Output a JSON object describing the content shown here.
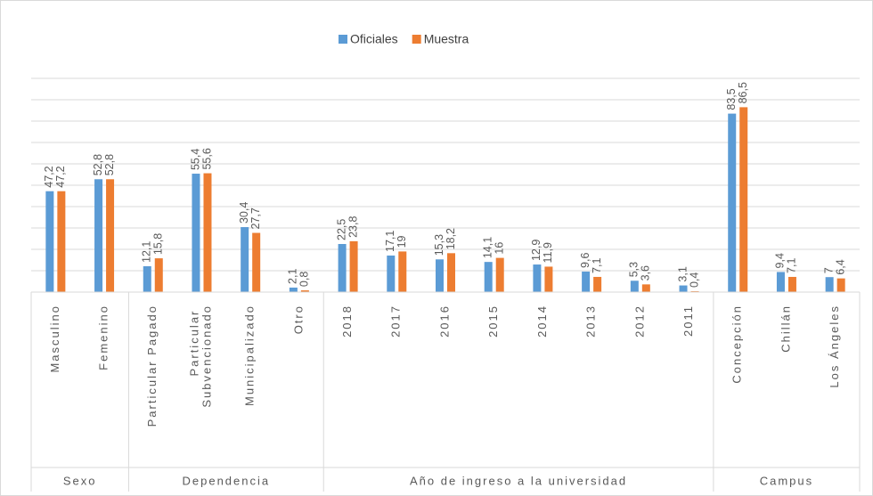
{
  "chart_data": {
    "type": "bar",
    "groups": [
      {
        "label": "Sexo",
        "categories": [
          "Masculino",
          "Femenino"
        ]
      },
      {
        "label": "Dependencia",
        "categories": [
          "Particular Pagado",
          "Particular Subvencionado",
          "Municipalizado",
          "Otro"
        ]
      },
      {
        "label": "Año de ingreso a la universidad",
        "categories": [
          "2018",
          "2017",
          "2016",
          "2015",
          "2014",
          "2013",
          "2012",
          "2011"
        ]
      },
      {
        "label": "Campus",
        "categories": [
          "Concepción",
          "Chillán",
          "Los Ángeles"
        ]
      }
    ],
    "series": [
      {
        "name": "Oficiales",
        "color": "#5b9bd5",
        "values": [
          47.2,
          52.8,
          12.1,
          55.4,
          30.4,
          2.1,
          22.5,
          17.1,
          15.3,
          14.1,
          12.9,
          9.6,
          5.3,
          3.1,
          83.5,
          9.4,
          7
        ],
        "value_labels": [
          "47,2",
          "52,8",
          "12,1",
          "55,4",
          "30,4",
          "2,1",
          "22,5",
          "17,1",
          "15,3",
          "14,1",
          "12,9",
          "9,6",
          "5,3",
          "3,1",
          "83,5",
          "9,4",
          "7"
        ]
      },
      {
        "name": "Muestra",
        "color": "#ed7d31",
        "values": [
          47.2,
          52.8,
          15.8,
          55.6,
          27.7,
          0.8,
          23.8,
          19,
          18.2,
          16,
          11.9,
          7.1,
          3.6,
          0.4,
          86.5,
          7.1,
          6.4
        ],
        "value_labels": [
          "47,2",
          "52,8",
          "15,8",
          "55,6",
          "27,7",
          "0,8",
          "23,8",
          "19",
          "18,2",
          "16",
          "11,9",
          "7,1",
          "3,6",
          "0,4",
          "86,5",
          "7,1",
          "6,4"
        ]
      }
    ],
    "ylim": [
      0,
      100
    ],
    "yticks": [
      0,
      10,
      20,
      30,
      40,
      50,
      60,
      70,
      80,
      90,
      100
    ],
    "grid": true,
    "legend": "top"
  }
}
